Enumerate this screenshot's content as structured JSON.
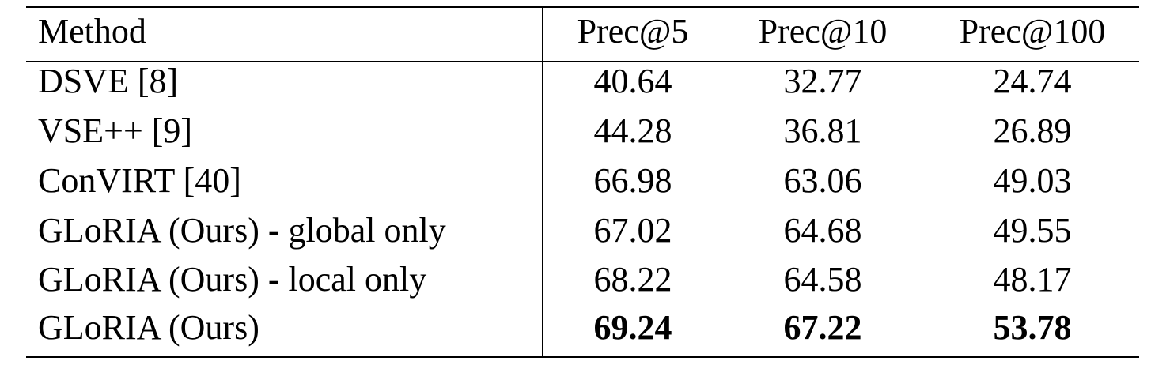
{
  "table": {
    "header": [
      "Method",
      "Prec@5",
      "Prec@10",
      "Prec@100"
    ],
    "rows": [
      [
        "DSVE [8]",
        "40.64",
        "32.77",
        "24.74"
      ],
      [
        "VSE++ [9]",
        "44.28",
        "36.81",
        "26.89"
      ],
      [
        "ConVIRT [40]",
        "66.98",
        "63.06",
        "49.03"
      ],
      [
        "GLoRIA (Ours) - global only",
        "67.02",
        "64.68",
        "49.55"
      ],
      [
        "GLoRIA (Ours) - local only",
        "68.22",
        "64.58",
        "48.17"
      ],
      [
        "GLoRIA (Ours)",
        "69.24",
        "67.22",
        "53.78"
      ]
    ]
  }
}
